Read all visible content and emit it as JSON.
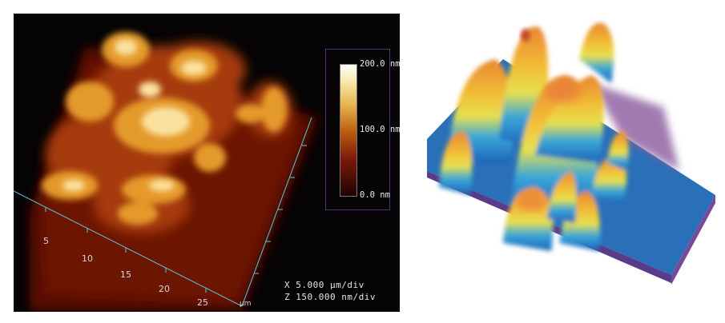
{
  "left_image": {
    "colorbar": {
      "top_label": "200.0 nm",
      "mid_label": "100.0 nm",
      "bottom_label": "0.0 nm"
    },
    "axis_ticks": [
      "5",
      "10",
      "15",
      "20",
      "25"
    ],
    "axis_unit": "µm",
    "scale_x": "X  5.000 µm/div",
    "scale_z": "Z  150.000 nm/div"
  },
  "right_image": {
    "description_icon": "3d-afm-surface-render"
  },
  "colors": {
    "background_left": "#050303",
    "axis_cyan": "#5cc8d8",
    "colorbar_border": "#4a3a70"
  }
}
